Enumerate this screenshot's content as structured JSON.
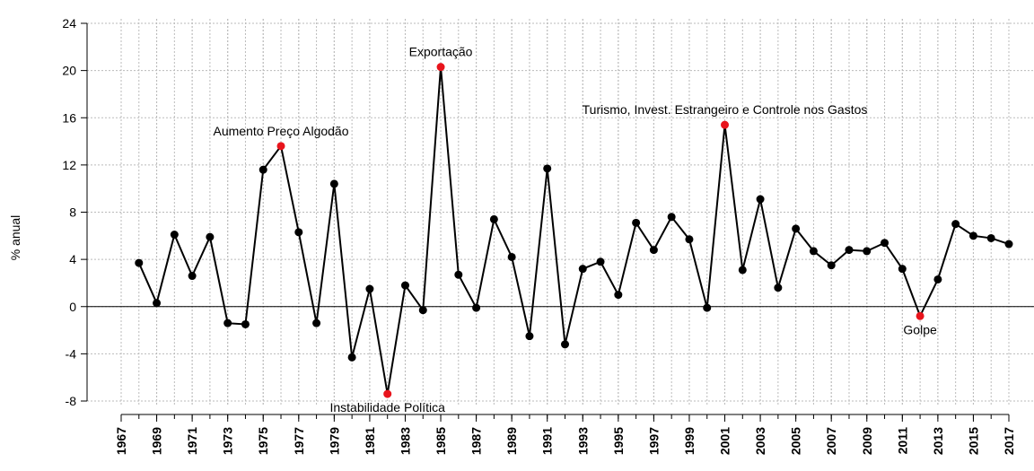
{
  "chart_data": {
    "type": "line",
    "y_label": "% anual",
    "x": [
      1968,
      1969,
      1970,
      1971,
      1972,
      1973,
      1974,
      1975,
      1976,
      1977,
      1978,
      1979,
      1980,
      1981,
      1982,
      1983,
      1984,
      1985,
      1986,
      1987,
      1988,
      1989,
      1990,
      1991,
      1992,
      1993,
      1994,
      1995,
      1996,
      1997,
      1998,
      1999,
      2000,
      2001,
      2002,
      2003,
      2004,
      2005,
      2006,
      2007,
      2008,
      2009,
      2010,
      2011,
      2012,
      2013,
      2014,
      2015,
      2016,
      2017
    ],
    "values": [
      3.7,
      0.3,
      6.1,
      2.6,
      5.9,
      -1.4,
      -1.5,
      11.6,
      13.6,
      6.3,
      -1.4,
      10.4,
      -4.3,
      1.5,
      -7.4,
      1.8,
      -0.3,
      20.3,
      2.7,
      -0.1,
      7.4,
      4.2,
      -2.5,
      11.7,
      -3.2,
      3.2,
      3.8,
      1.0,
      7.1,
      4.8,
      7.6,
      5.7,
      -0.1,
      15.4,
      3.1,
      9.1,
      1.6,
      6.6,
      4.7,
      3.5,
      4.8,
      4.7,
      5.4,
      3.2,
      -0.8,
      2.3,
      7.0,
      6.0,
      5.8,
      5.3
    ],
    "color": "#000000",
    "highlight_color": "#e8141c",
    "annotations": [
      {
        "text": "Aumento Preço Algodão",
        "index": 8,
        "side": "above"
      },
      {
        "text": "Instabilidade Política",
        "index": 14,
        "side": "below"
      },
      {
        "text": "Exportação",
        "index": 17,
        "side": "above"
      },
      {
        "text": "Turismo, Invest. Estrangeiro e Controle nos Gastos",
        "index": 33,
        "side": "above"
      },
      {
        "text": "Golpe",
        "index": 44,
        "side": "below"
      }
    ],
    "xlim": [
      1967,
      2017
    ],
    "xticks": [
      1967,
      1969,
      1971,
      1973,
      1975,
      1977,
      1979,
      1981,
      1983,
      1985,
      1987,
      1989,
      1991,
      1993,
      1995,
      1997,
      1999,
      2001,
      2003,
      2005,
      2007,
      2009,
      2011,
      2013,
      2015,
      2017
    ],
    "ylim": [
      -8,
      24
    ],
    "yticks": [
      -8,
      -4,
      0,
      4,
      8,
      12,
      16,
      20,
      24
    ],
    "grid": true
  }
}
